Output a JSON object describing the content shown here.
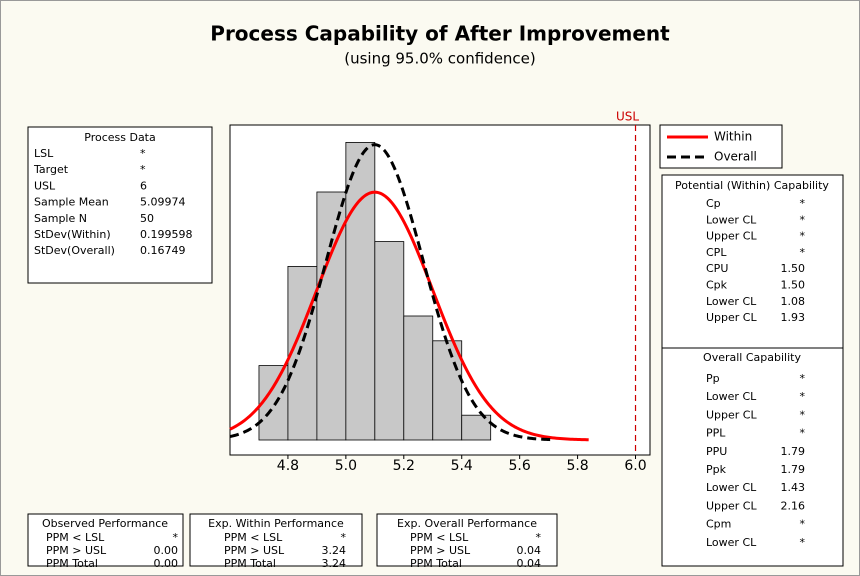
{
  "chart_data": {
    "type": "histogram",
    "title": "Process Capability of After Improvement",
    "subtitle": "(using 95.0% confidence)",
    "bins": [
      4.7,
      4.8,
      4.9,
      5.0,
      5.1,
      5.2,
      5.3,
      5.4,
      5.5
    ],
    "counts": [
      3,
      7,
      10,
      12,
      8,
      5,
      4,
      1
    ],
    "color": "#c8c8c8",
    "xlim": [
      4.6,
      6.05
    ],
    "ylim": [
      0,
      12.5
    ],
    "xticks": [
      4.8,
      {
        "value": 5,
        "label": "5.0"
      },
      5.2,
      5.4,
      5.6,
      5.8,
      {
        "value": 6,
        "label": "6.0"
      }
    ],
    "series": [
      {
        "name": "Within",
        "color": "#ff0000",
        "dashed": false
      },
      {
        "name": "Overall",
        "color": "#000000",
        "dashed": true
      }
    ],
    "reference_line": {
      "label": "USL",
      "color": "#cc0000"
    }
  },
  "process_data": {
    "title": "Process Data",
    "rows": [
      {
        "label": "LSL",
        "value": "*"
      },
      {
        "label": "Target",
        "value": "*"
      },
      {
        "label": "USL",
        "value": 6
      },
      {
        "label": "Sample Mean",
        "value": 5.09974
      },
      {
        "label": "Sample N",
        "value": 50
      },
      {
        "label": "StDev(Within)",
        "value": 0.199598
      },
      {
        "label": "StDev(Overall)",
        "value": 0.16749
      }
    ]
  },
  "potential_capability": {
    "title": "Potential (Within) Capability",
    "rows": [
      {
        "label": "Cp",
        "value": "*"
      },
      {
        "label": "Lower CL",
        "value": "*"
      },
      {
        "label": "Upper CL",
        "value": "*"
      },
      {
        "label": "CPL",
        "value": "*"
      },
      {
        "label": "CPU",
        "value": "1.50"
      },
      {
        "label": "Cpk",
        "value": "1.50"
      },
      {
        "label": "Lower CL",
        "value": "1.08"
      },
      {
        "label": "Upper CL",
        "value": "1.93"
      }
    ]
  },
  "overall_capability": {
    "title": "Overall Capability",
    "rows": [
      {
        "label": "Pp",
        "value": "*"
      },
      {
        "label": "Lower CL",
        "value": "*"
      },
      {
        "label": "Upper CL",
        "value": "*"
      },
      {
        "label": "PPL",
        "value": "*"
      },
      {
        "label": "PPU",
        "value": "1.79"
      },
      {
        "label": "Ppk",
        "value": "1.79"
      },
      {
        "label": "Lower CL",
        "value": "1.43"
      },
      {
        "label": "Upper CL",
        "value": "2.16"
      },
      {
        "label": "Cpm",
        "value": "*"
      },
      {
        "label": "Lower CL",
        "value": "*"
      }
    ]
  },
  "observed_performance": {
    "title": "Observed Performance",
    "rows": [
      {
        "label": "PPM < LSL",
        "value": "*"
      },
      {
        "label": "PPM > USL",
        "value": "0.00"
      },
      {
        "label": "PPM Total",
        "value": "0.00"
      }
    ]
  },
  "exp_within_performance": {
    "title": "Exp. Within Performance",
    "rows": [
      {
        "label": "PPM < LSL",
        "value": "*"
      },
      {
        "label": "PPM > USL",
        "value": "3.24"
      },
      {
        "label": "PPM Total",
        "value": "3.24"
      }
    ]
  },
  "exp_overall_performance": {
    "title": "Exp. Overall Performance",
    "rows": [
      {
        "label": "PPM < LSL",
        "value": "*"
      },
      {
        "label": "PPM > USL",
        "value": "0.04"
      },
      {
        "label": "PPM Total",
        "value": "0.04"
      }
    ]
  }
}
